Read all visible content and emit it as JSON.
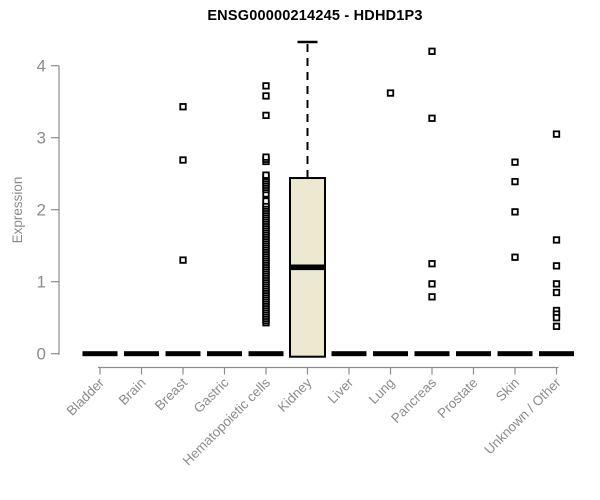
{
  "window": {
    "background": "#ffffff"
  },
  "chart_data": {
    "type": "boxplot",
    "title": "ENSG00000214245 - HDHD1P3",
    "ylabel": "Expression",
    "xlabel": "",
    "ylim": [
      0,
      4.35
    ],
    "yticks": [
      0,
      1,
      2,
      3,
      4
    ],
    "grid": false,
    "legend": false,
    "x_label_rotation": 45,
    "axis_color": "#8c8c8c",
    "title_color": "#000000",
    "box_fill": "#EDE8D0",
    "box_stroke": "#000000",
    "point_color": "#000000",
    "categories": [
      "Bladder",
      "Brain",
      "Breast",
      "Gastric",
      "Hematopoietic cells",
      "Kidney",
      "Liver",
      "Lung",
      "Pancreas",
      "Prostate",
      "Skin",
      "Unknown / Other"
    ],
    "boxes": [
      {
        "category": "Bladder",
        "q1": 0,
        "median": 0,
        "q3": 0,
        "whisker_low": 0,
        "whisker_high": 0,
        "outliers": []
      },
      {
        "category": "Brain",
        "q1": 0,
        "median": 0,
        "q3": 0,
        "whisker_low": 0,
        "whisker_high": 0,
        "outliers": []
      },
      {
        "category": "Breast",
        "q1": 0,
        "median": 0,
        "q3": 0,
        "whisker_low": 0,
        "whisker_high": 0,
        "outliers": [
          3.43,
          2.69,
          1.3
        ]
      },
      {
        "category": "Gastric",
        "q1": 0,
        "median": 0,
        "q3": 0,
        "whisker_low": 0,
        "whisker_high": 0,
        "outliers": []
      },
      {
        "category": "Hematopoietic cells",
        "q1": 0,
        "median": 0,
        "q3": 0,
        "whisker_low": 0,
        "whisker_high": 0,
        "outliers": [
          0.43,
          0.46,
          0.49,
          0.52,
          0.55,
          0.58,
          0.61,
          0.64,
          0.67,
          0.7,
          0.73,
          0.76,
          0.79,
          0.82,
          0.85,
          0.88,
          0.91,
          0.94,
          0.97,
          1.0,
          1.03,
          1.06,
          1.09,
          1.12,
          1.15,
          1.18,
          1.21,
          1.24,
          1.27,
          1.3,
          1.33,
          1.36,
          1.39,
          1.42,
          1.45,
          1.48,
          1.51,
          1.54,
          1.57,
          1.6,
          1.63,
          1.66,
          1.69,
          1.72,
          1.75,
          1.78,
          1.81,
          1.84,
          1.87,
          1.9,
          1.93,
          1.96,
          1.99,
          2.02,
          2.05,
          2.08,
          2.12,
          2.22,
          2.28,
          2.31,
          2.34,
          2.37,
          2.4,
          2.43,
          2.46,
          2.48,
          2.67,
          2.7,
          2.73,
          3.31,
          3.58,
          3.72
        ]
      },
      {
        "category": "Kidney",
        "q1": 0,
        "median": 1.2,
        "q3": 2.44,
        "whisker_low": 0,
        "whisker_high": 4.33,
        "outliers": []
      },
      {
        "category": "Liver",
        "q1": 0,
        "median": 0,
        "q3": 0,
        "whisker_low": 0,
        "whisker_high": 0,
        "outliers": []
      },
      {
        "category": "Lung",
        "q1": 0,
        "median": 0,
        "q3": 0,
        "whisker_low": 0,
        "whisker_high": 0,
        "outliers": [
          3.62
        ]
      },
      {
        "category": "Pancreas",
        "q1": 0,
        "median": 0,
        "q3": 0,
        "whisker_low": 0,
        "whisker_high": 0,
        "outliers": [
          4.2,
          3.27,
          1.25,
          0.97,
          0.79
        ]
      },
      {
        "category": "Prostate",
        "q1": 0,
        "median": 0,
        "q3": 0,
        "whisker_low": 0,
        "whisker_high": 0,
        "outliers": []
      },
      {
        "category": "Skin",
        "q1": 0,
        "median": 0,
        "q3": 0,
        "whisker_low": 0,
        "whisker_high": 0,
        "outliers": [
          2.66,
          2.39,
          1.97,
          1.34
        ]
      },
      {
        "category": "Unknown / Other",
        "q1": 0,
        "median": 0,
        "q3": 0,
        "whisker_low": 0,
        "whisker_high": 0,
        "outliers": [
          3.05,
          1.58,
          1.22,
          0.97,
          0.85,
          0.6,
          0.55,
          0.5,
          0.38
        ]
      }
    ]
  }
}
